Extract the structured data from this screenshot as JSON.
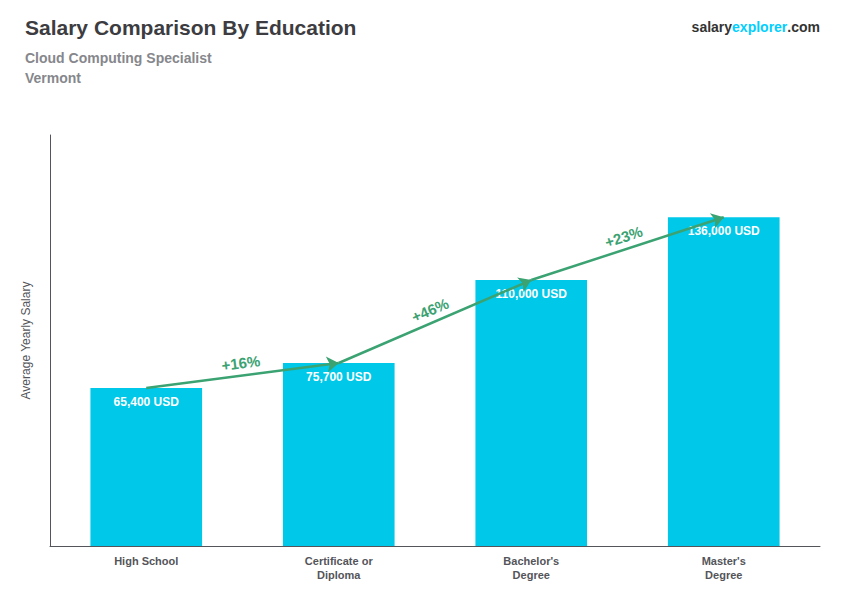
{
  "chart_data": {
    "type": "bar",
    "title": "Salary Comparison By Education",
    "subtitle": [
      "Cloud Computing Specialist",
      "Vermont"
    ],
    "categories": [
      "High School",
      "Certificate or\nDiploma",
      "Bachelor's\nDegree",
      "Master's\nDegree"
    ],
    "values": [
      65400,
      75700,
      110000,
      136000
    ],
    "value_labels": [
      "65,400 USD",
      "75,700 USD",
      "110,000 USD",
      "136,000 USD"
    ],
    "data_labels": true,
    "color": "#00C8E8",
    "ylabel": "Average Yearly Salary",
    "ylim": [
      0,
      170000
    ],
    "tick_labels": "x",
    "grid": false,
    "annotations": [
      {
        "text": "+16%",
        "from": "High School",
        "to": "Certificate or\nDiploma"
      },
      {
        "text": "+46%",
        "from": "Certificate or\nDiploma",
        "to": "Bachelor's\nDegree"
      },
      {
        "text": "+23%",
        "from": "Bachelor's\nDegree",
        "to": "Master's\nDegree"
      },
      {
        "text": "salary"
      },
      {
        "text": "explorer",
        "color": "#00CFFF"
      },
      {
        "text": ".com"
      }
    ]
  }
}
